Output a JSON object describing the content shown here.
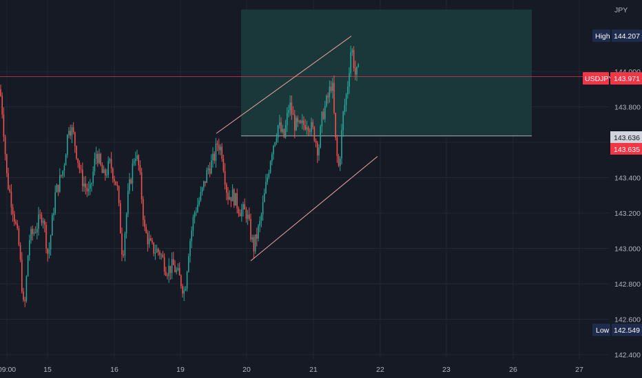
{
  "currency_label": "JPY",
  "colors": {
    "background": "#161a25",
    "grid": "#232733",
    "up": "#26a69a",
    "down": "#ef5350",
    "zone_fill": "#1b3b3d",
    "zone_line": "#aab1b8",
    "channel": "#f0a7a0",
    "axis_text": "#b2b5be",
    "high_low_label": "#1f2b4d",
    "price_label": "#f23645",
    "marker_label": "#d1d4dc"
  },
  "labels": {
    "high": {
      "name": "High",
      "value": "144.207"
    },
    "low": {
      "name": "Low",
      "value": "142.549"
    },
    "current": {
      "name": "USDJPY",
      "value": "143.971"
    },
    "zone_bottom": "143.636",
    "marker2": "143.635"
  },
  "chart_data": {
    "type": "candlestick",
    "symbol": "USDJPY",
    "yticks": [
      "144.000",
      "143.800",
      "143.600",
      "143.400",
      "143.200",
      "143.000",
      "142.800",
      "142.600",
      "142.400"
    ],
    "ytick_values": [
      144.0,
      143.8,
      143.6,
      143.4,
      143.2,
      143.0,
      142.8,
      142.6,
      142.4
    ],
    "xticks": [
      "09:00",
      "15",
      "16",
      "19",
      "20",
      "21",
      "22",
      "23",
      "26",
      "27"
    ],
    "ylim": [
      142.4,
      144.35
    ],
    "price_anchors": [
      [
        0,
        143.9
      ],
      [
        4,
        143.75
      ],
      [
        10,
        143.4
      ],
      [
        20,
        143.2
      ],
      [
        28,
        143.0
      ],
      [
        35,
        142.62
      ],
      [
        42,
        143.05
      ],
      [
        50,
        143.1
      ],
      [
        62,
        143.2
      ],
      [
        70,
        142.95
      ],
      [
        80,
        143.3
      ],
      [
        92,
        143.45
      ],
      [
        100,
        143.7
      ],
      [
        106,
        143.65
      ],
      [
        118,
        143.4
      ],
      [
        130,
        143.3
      ],
      [
        140,
        143.55
      ],
      [
        150,
        143.4
      ],
      [
        160,
        143.48
      ],
      [
        170,
        143.35
      ],
      [
        178,
        142.95
      ],
      [
        186,
        143.3
      ],
      [
        196,
        143.55
      ],
      [
        202,
        143.45
      ],
      [
        210,
        143.1
      ],
      [
        220,
        143.0
      ],
      [
        232,
        142.98
      ],
      [
        242,
        142.88
      ],
      [
        252,
        142.9
      ],
      [
        262,
        142.82
      ],
      [
        268,
        142.75
      ],
      [
        274,
        143.0
      ],
      [
        282,
        143.2
      ],
      [
        292,
        143.3
      ],
      [
        302,
        143.45
      ],
      [
        310,
        143.5
      ],
      [
        316,
        143.6
      ],
      [
        322,
        143.55
      ],
      [
        330,
        143.3
      ],
      [
        338,
        143.3
      ],
      [
        348,
        143.22
      ],
      [
        358,
        143.2
      ],
      [
        368,
        143.0
      ],
      [
        378,
        143.15
      ],
      [
        386,
        143.35
      ],
      [
        394,
        143.55
      ],
      [
        404,
        143.7
      ],
      [
        412,
        143.62
      ],
      [
        420,
        143.82
      ],
      [
        428,
        143.7
      ],
      [
        436,
        143.68
      ],
      [
        446,
        143.72
      ],
      [
        456,
        143.65
      ],
      [
        462,
        143.55
      ],
      [
        468,
        143.75
      ],
      [
        476,
        143.85
      ],
      [
        482,
        143.95
      ],
      [
        488,
        143.55
      ],
      [
        492,
        143.45
      ],
      [
        498,
        143.75
      ],
      [
        504,
        143.9
      ],
      [
        510,
        144.15
      ],
      [
        516,
        143.98
      ],
      [
        521,
        144.0
      ]
    ],
    "zone": {
      "top": 144.35,
      "bottom": 143.636
    },
    "current_price": 143.971,
    "channel_upper": [
      [
        314,
        143.65
      ],
      [
        510,
        144.2
      ]
    ],
    "channel_lower": [
      [
        364,
        142.93
      ],
      [
        548,
        143.52
      ]
    ]
  }
}
